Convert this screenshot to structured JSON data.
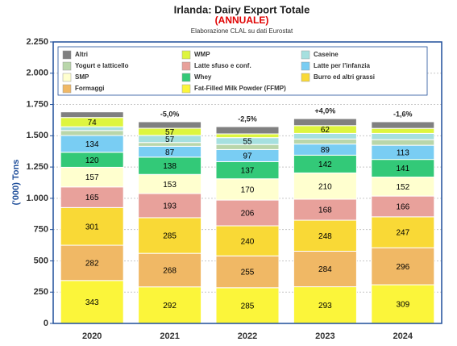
{
  "chart_data": {
    "type": "stacked_bar",
    "title": "Irlanda: Dairy Export Totale",
    "subtitle": "(ANNUALE)",
    "source": "Elaborazione CLAL su dati Eurostat",
    "y_label": "('000) Tons",
    "categories": [
      "2020",
      "2021",
      "2022",
      "2023",
      "2024"
    ],
    "annotations": [
      null,
      "-5,0%",
      "-2,5%",
      "+4,0%",
      "-1,6%"
    ],
    "ylim": [
      0,
      2250
    ],
    "yticks": [
      0,
      250,
      500,
      750,
      {
        "value": 1000,
        "label": "1.000"
      },
      {
        "value": 1250,
        "label": "1.250"
      },
      {
        "value": 1500,
        "label": "1.500"
      },
      {
        "value": 1750,
        "label": "1.750"
      },
      {
        "value": 2000,
        "label": "2.000"
      },
      {
        "value": 2250,
        "label": "2.250"
      }
    ],
    "grid": true,
    "series": [
      {
        "name": "Fat-Filled Milk Powder (FFMP)",
        "color": "#fbf53a",
        "values": [
          343,
          292,
          285,
          293,
          309
        ],
        "value_labels": [
          "343",
          "292",
          "285",
          "293",
          "309"
        ]
      },
      {
        "name": "Formaggi",
        "color": "#f0b865",
        "values": [
          282,
          268,
          255,
          284,
          296
        ],
        "value_labels": [
          "282",
          "268",
          "255",
          "284",
          "296"
        ]
      },
      {
        "name": "Burro ed altri grassi",
        "color": "#f9d936",
        "values": [
          301,
          285,
          240,
          248,
          247
        ],
        "value_labels": [
          "301",
          "285",
          "240",
          "248",
          "247"
        ]
      },
      {
        "name": "Latte sfuso e conf.",
        "color": "#e8a19b",
        "values": [
          165,
          193,
          206,
          168,
          166
        ],
        "value_labels": [
          "165",
          "193",
          "206",
          "168",
          "166"
        ]
      },
      {
        "name": "SMP",
        "color": "#ffffcf",
        "values": [
          157,
          153,
          170,
          210,
          152
        ],
        "value_labels": [
          "157",
          "153",
          "170",
          "210",
          "152"
        ]
      },
      {
        "name": "Whey",
        "color": "#33c978",
        "values": [
          120,
          138,
          137,
          142,
          141
        ],
        "value_labels": [
          "120",
          "138",
          "137",
          "142",
          "141"
        ]
      },
      {
        "name": "Latte per l'infanzia",
        "color": "#79cdf3",
        "values": [
          134,
          87,
          97,
          89,
          113
        ],
        "value_labels": [
          "134",
          "87",
          "97",
          "89",
          "113"
        ]
      },
      {
        "name": "Yogurt e latticello",
        "color": "#b9d6aa",
        "values": [
          40,
          30,
          40,
          40,
          45
        ],
        "value_labels": [
          null,
          null,
          null,
          null,
          null
        ]
      },
      {
        "name": "Caseine",
        "color": "#a6e0df",
        "values": [
          30,
          57,
          55,
          45,
          50
        ],
        "value_labels": [
          null,
          "57",
          "55",
          null,
          null
        ]
      },
      {
        "name": "WMP",
        "color": "#def53f",
        "values": [
          74,
          57,
          30,
          62,
          40
        ],
        "value_labels": [
          "74",
          "57",
          null,
          "62",
          null
        ]
      },
      {
        "name": "Altri",
        "color": "#808080",
        "values": [
          45,
          52,
          58,
          56,
          53
        ],
        "value_labels": [
          null,
          null,
          null,
          null,
          null
        ]
      }
    ]
  }
}
